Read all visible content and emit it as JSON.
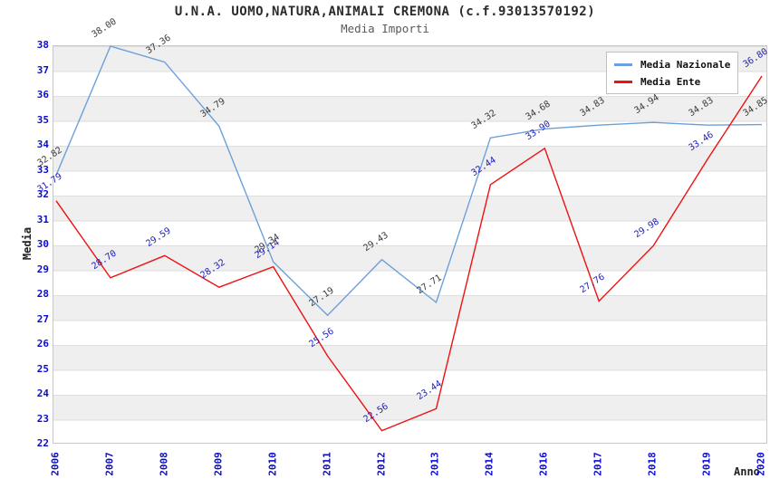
{
  "chart_data": {
    "type": "line",
    "title": "U.N.A. UOMO,NATURA,ANIMALI CREMONA (c.f.93013570192)",
    "subtitle": "Media Importi",
    "xlabel": "Anno",
    "ylabel": "Media",
    "x": [
      "2006",
      "2007",
      "2008",
      "2009",
      "2010",
      "2011",
      "2012",
      "2013",
      "2014",
      "2016",
      "2017",
      "2018",
      "2019",
      "2020"
    ],
    "ylim": [
      22,
      38
    ],
    "ytick_step": 1,
    "grid": "horizontal-bands",
    "legend_position": "top-right-inside",
    "series": [
      {
        "name": "Media Nazionale",
        "color": "#6CA0DA",
        "label_color": "#3A3A3A",
        "values": [
          32.82,
          38.0,
          37.36,
          34.79,
          29.34,
          27.19,
          29.43,
          27.71,
          34.32,
          34.68,
          34.83,
          34.94,
          34.83,
          34.85
        ]
      },
      {
        "name": "Media Ente",
        "color": "#EE1111",
        "label_color": "#1D1DB8",
        "values": [
          31.79,
          28.7,
          29.59,
          28.32,
          29.14,
          25.56,
          22.56,
          23.44,
          32.44,
          33.9,
          27.76,
          29.98,
          33.46,
          36.8
        ]
      }
    ]
  },
  "colors": {
    "tick_label": "#0B0BD0",
    "band": "#EFEFEF",
    "plot_border": "#C8C8C8",
    "title": "#2B2B2B",
    "subtitle": "#5A5A5A"
  }
}
